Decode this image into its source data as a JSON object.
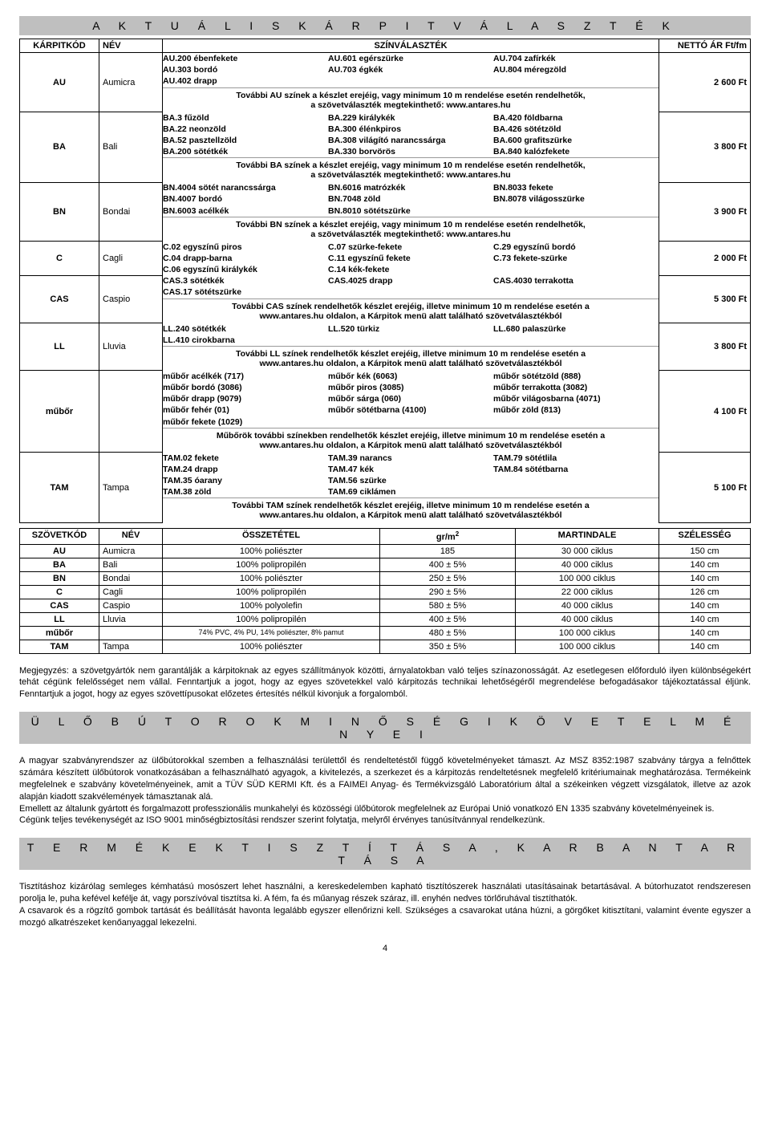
{
  "section1_title": "A K T U Á L I S   K Á R P I T V Á L A S Z T É K",
  "t1": {
    "headers": {
      "code": "KÁRPITKÓD",
      "name": "NÉV",
      "colors": "SZÍNVÁLASZTÉK",
      "price": "NETTÓ ÁR Ft/fm"
    },
    "rows": [
      {
        "code": "AU",
        "name": "Aumicra",
        "price": "2 600 Ft",
        "cols": [
          [
            "AU.200 ébenfekete",
            "AU.303 bordó",
            "AU.402 drapp"
          ],
          [
            "AU.601 egérszürke",
            "AU.703 égkék"
          ],
          [
            "AU.704 zafírkék",
            "AU.804 méregzöld"
          ]
        ],
        "note": [
          "További AU színek a készlet erejéig, vagy minimum 10 m rendelése esetén rendelhetők,",
          "a szövetválaszték megtekinthető: www.antares.hu"
        ]
      },
      {
        "code": "BA",
        "name": "Bali",
        "price": "3 800 Ft",
        "cols": [
          [
            "BA.3 fűzöld",
            "BA.22 neonzöld",
            "BA.52 pasztellzöld",
            "BA.200 sötétkék"
          ],
          [
            "BA.229 királykék",
            "BA.300 élénkpiros",
            "BA.308 világító narancssárga",
            "BA.330 borvörös"
          ],
          [
            "BA.420 földbarna",
            "BA.426 sötétzöld",
            "BA.600 grafitszürke",
            "BA.840 kalózfekete"
          ]
        ],
        "note": [
          "További BA színek a készlet erejéig, vagy minimum 10 m rendelése esetén rendelhetők,",
          "a szövetválaszték megtekinthető: www.antares.hu"
        ]
      },
      {
        "code": "BN",
        "name": "Bondai",
        "price": "3 900 Ft",
        "cols": [
          [
            "BN.4004 sötét narancssárga",
            "BN.4007 bordó",
            "BN.6003 acélkék"
          ],
          [
            "BN.6016 matrózkék",
            "BN.7048 zöld",
            "BN.8010 sötétszürke"
          ],
          [
            "BN.8033 fekete",
            "BN.8078 világosszürke"
          ]
        ],
        "note": [
          "További BN színek a készlet erejéig, vagy minimum 10 m rendelése esetén rendelhetők,",
          "a szövetválaszték megtekinthető: www.antares.hu"
        ]
      },
      {
        "code": "C",
        "name": "Cagli",
        "price": "2 000 Ft",
        "cols": [
          [
            "C.02 egyszínű piros",
            "C.04 drapp-barna",
            "C.06 egyszínű királykék"
          ],
          [
            "C.07 szürke-fekete",
            "C.11 egyszínű fekete",
            "C.14 kék-fekete"
          ],
          [
            "C.29 egyszínű bordó",
            "C.73 fekete-szürke"
          ]
        ]
      },
      {
        "code": "CAS",
        "name": "Caspio",
        "price": "5 300 Ft",
        "cols": [
          [
            "CAS.3 sötétkék",
            "CAS.17 sötétszürke"
          ],
          [
            "CAS.4025 drapp"
          ],
          [
            "CAS.4030 terrakotta"
          ]
        ],
        "note": [
          "További CAS színek rendelhetők készlet erejéig, illetve minimum 10 m rendelése esetén a",
          "www.antares.hu oldalon, a Kárpitok menü alatt található szövetválasztékból"
        ]
      },
      {
        "code": "LL",
        "name": "Lluvia",
        "price": "3 800 Ft",
        "cols": [
          [
            "LL.240 sötétkék",
            "LL.410 cirokbarna"
          ],
          [
            "LL.520 türkiz"
          ],
          [
            "LL.680 palaszürke"
          ]
        ],
        "note": [
          "További LL színek rendelhetők készlet erejéig, illetve minimum 10 m rendelése esetén a",
          "www.antares.hu oldalon, a Kárpitok menü alatt található szövetválasztékból"
        ]
      },
      {
        "code": "műbőr",
        "name": "",
        "price": "4 100 Ft",
        "cols": [
          [
            "műbőr acélkék (717)",
            "műbőr bordó (3086)",
            "műbőr drapp (9079)",
            "műbőr fehér (01)",
            "műbőr fekete (1029)"
          ],
          [
            "műbőr kék (6063)",
            "műbőr piros (3085)",
            "műbőr sárga (060)",
            "műbőr sötétbarna (4100)"
          ],
          [
            "műbőr sötétzöld (888)",
            "műbőr terrakotta (3082)",
            "műbőr világosbarna (4071)",
            "műbőr zöld (813)"
          ]
        ],
        "note": [
          "Műbőrök további színekben rendelhetők készlet erejéig, illetve minimum 10 m rendelése esetén a",
          "www.antares.hu oldalon, a Kárpitok menü alatt található szövetválasztékból"
        ]
      },
      {
        "code": "TAM",
        "name": "Tampa",
        "price": "5 100 Ft",
        "cols": [
          [
            "TAM.02 fekete",
            "TAM.24 drapp",
            "TAM.35 óarany",
            "TAM.38 zöld"
          ],
          [
            "TAM.39 narancs",
            "TAM.47 kék",
            "TAM.56 szürke",
            "TAM.69 ciklámen"
          ],
          [
            "TAM.79 sötétlila",
            "TAM.84 sötétbarna"
          ]
        ],
        "note": [
          "További TAM színek rendelhetők készlet erejéig, illetve minimum 10 m rendelése esetén a",
          "www.antares.hu oldalon, a Kárpitok menü alatt található szövetválasztékból"
        ]
      }
    ]
  },
  "t2": {
    "headers": {
      "code": "SZÖVETKÓD",
      "name": "NÉV",
      "comp": "ÖSSZETÉTEL",
      "gr": "gr/m",
      "mart": "MARTINDALE",
      "width": "SZÉLESSÉG"
    },
    "rows": [
      {
        "code": "AU",
        "name": "Aumicra",
        "comp": "100% poliészter",
        "gr": "185",
        "mart": "30 000 ciklus",
        "width": "150 cm"
      },
      {
        "code": "BA",
        "name": "Bali",
        "comp": "100% polipropilén",
        "gr": "400 ± 5%",
        "mart": "40 000 ciklus",
        "width": "140 cm"
      },
      {
        "code": "BN",
        "name": "Bondai",
        "comp": "100% poliészter",
        "gr": "250 ± 5%",
        "mart": "100 000 ciklus",
        "width": "140 cm"
      },
      {
        "code": "C",
        "name": "Cagli",
        "comp": "100% polipropilén",
        "gr": "290 ± 5%",
        "mart": "22 000 ciklus",
        "width": "126 cm"
      },
      {
        "code": "CAS",
        "name": "Caspio",
        "comp": "100% polyolefin",
        "gr": "580 ± 5%",
        "mart": "40 000 ciklus",
        "width": "140 cm"
      },
      {
        "code": "LL",
        "name": "Lluvia",
        "comp": "100% polipropilén",
        "gr": "400 ± 5%",
        "mart": "40 000 ciklus",
        "width": "140 cm"
      },
      {
        "code": "műbőr",
        "name": "",
        "comp": "74% PVC, 4% PU, 14% poliészter, 8% pamut",
        "gr": "480 ± 5%",
        "mart": "100 000 ciklus",
        "width": "140 cm",
        "small": true
      },
      {
        "code": "TAM",
        "name": "Tampa",
        "comp": "100% poliészter",
        "gr": "350 ± 5%",
        "mart": "100 000 ciklus",
        "width": "140 cm"
      }
    ]
  },
  "note1": "Megjegyzés: a szövetgyártók nem garantálják a kárpitoknak az egyes szállítmányok közötti, árnyalatokban való teljes színazonosságát. Az esetlegesen előforduló ilyen különbségekért tehát cégünk felelősséget nem vállal. Fenntartjuk a jogot, hogy az egyes szövetekkel való kárpitozás technikai lehetőségéről megrendelése befogadásakor tájékoztatással éljünk. Fenntartjuk a jogot, hogy az egyes szövettípusokat előzetes értesítés nélkül kivonjuk a forgalomból.",
  "section2_title": "Ü L Ő B Ú T O R O K   M I N Ő S É G I   K Ö V E T E L M É N Y E I",
  "para2a": "A magyar szabványrendszer az ülőbútorokkal szemben a felhasználási területtől és rendeltetéstől függő követelményeket támaszt. Az MSZ 8352:1987 szabvány tárgya a felnőttek számára készített ülőbútorok vonatkozásában a felhasználható agyagok, a kivitelezés, a szerkezet és a kárpitozás rendeltetésnek megfelelő kritériumainak meghatározása. Termékeink megfelelnek e szabvány követelményeinek, amit a TÜV SÜD KERMI Kft. és a FAIMEI Anyag- és Termékvizsgáló Laboratórium által a székeinken végzett vizsgálatok, illetve az azok alapján kiadott szakvélemények támasztanak alá.",
  "para2b": "Emellett az általunk gyártott és forgalmazott professzionális munkahelyi és közösségi ülőbútorok megfelelnek az Európai Unió vonatkozó EN 1335 szabvány követelményeinek is.",
  "para2c": "Cégünk teljes tevékenységét az ISO 9001 minőségbiztosítási rendszer szerint folytatja, melyről érvényes tanúsítvánnyal rendelkezünk.",
  "section3_title": "T E R M É K E K   T I S Z T Í T Á S A ,   K A R B A N T A R T Á S A",
  "para3a": "Tisztításhoz kizárólag semleges kémhatású mosószert lehet használni, a kereskedelemben kapható tisztítószerek használati utasításainak betartásával. A bútorhuzatot rendszeresen porolja le, puha kefével kefélje át, vagy porszívóval tisztítsa ki. A fém, fa és műanyag részek száraz, ill. enyhén nedves törlőruhával tisztíthatók.",
  "para3b": "A csavarok és a rögzítő gombok tartását és beállítását havonta legalább egyszer ellenőrizni kell. Szükséges a csavarokat utána húzni, a görgőket kitisztítani, valamint évente egyszer a mozgó alkatrészeket kenőanyaggal lekezelni.",
  "page_number": "4"
}
